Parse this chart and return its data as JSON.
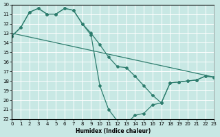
{
  "xlabel": "Humidex (Indice chaleur)",
  "xlim": [
    0,
    23
  ],
  "ylim": [
    22,
    10
  ],
  "xticks": [
    0,
    1,
    2,
    3,
    4,
    5,
    6,
    7,
    8,
    9,
    10,
    11,
    12,
    13,
    14,
    15,
    16,
    17,
    18,
    19,
    20,
    21,
    22,
    23
  ],
  "yticks": [
    10,
    11,
    12,
    13,
    14,
    15,
    16,
    17,
    18,
    19,
    20,
    21,
    22
  ],
  "bg_color": "#c8e8e4",
  "line_color": "#2e7d6e",
  "grid_color": "#d0d0d0",
  "curve1_x": [
    0,
    1,
    2,
    3,
    4,
    5,
    6,
    7,
    8,
    9,
    10,
    11,
    12,
    13,
    14,
    15,
    16,
    17,
    18,
    19,
    20,
    21,
    22,
    23
  ],
  "curve1_y": [
    13.3,
    12.4,
    10.8,
    10.4,
    11.0,
    11.0,
    10.4,
    10.6,
    12.0,
    13.2,
    18.5,
    21.0,
    22.2,
    22.5,
    21.6,
    21.4,
    20.5,
    20.3,
    18.2,
    18.1,
    18.0,
    17.9,
    17.5,
    17.6
  ],
  "curve2_x": [
    0,
    1,
    2,
    3,
    4,
    5,
    6,
    7,
    8,
    9,
    10,
    11,
    12,
    13,
    14,
    15,
    16,
    17,
    18,
    19,
    20,
    21,
    22,
    23
  ],
  "curve2_y": [
    13.3,
    12.4,
    10.8,
    10.4,
    11.0,
    11.0,
    10.4,
    10.6,
    12.0,
    13.0,
    14.2,
    15.5,
    16.5,
    16.6,
    17.5,
    18.5,
    19.5,
    20.3,
    18.2,
    18.1,
    18.0,
    17.9,
    17.5,
    17.6
  ],
  "line3_x": [
    0,
    23
  ],
  "line3_y": [
    13.0,
    17.6
  ],
  "marker_size": 2.0,
  "line_width": 0.9,
  "tick_fontsize": 5,
  "xlabel_fontsize": 5.5
}
